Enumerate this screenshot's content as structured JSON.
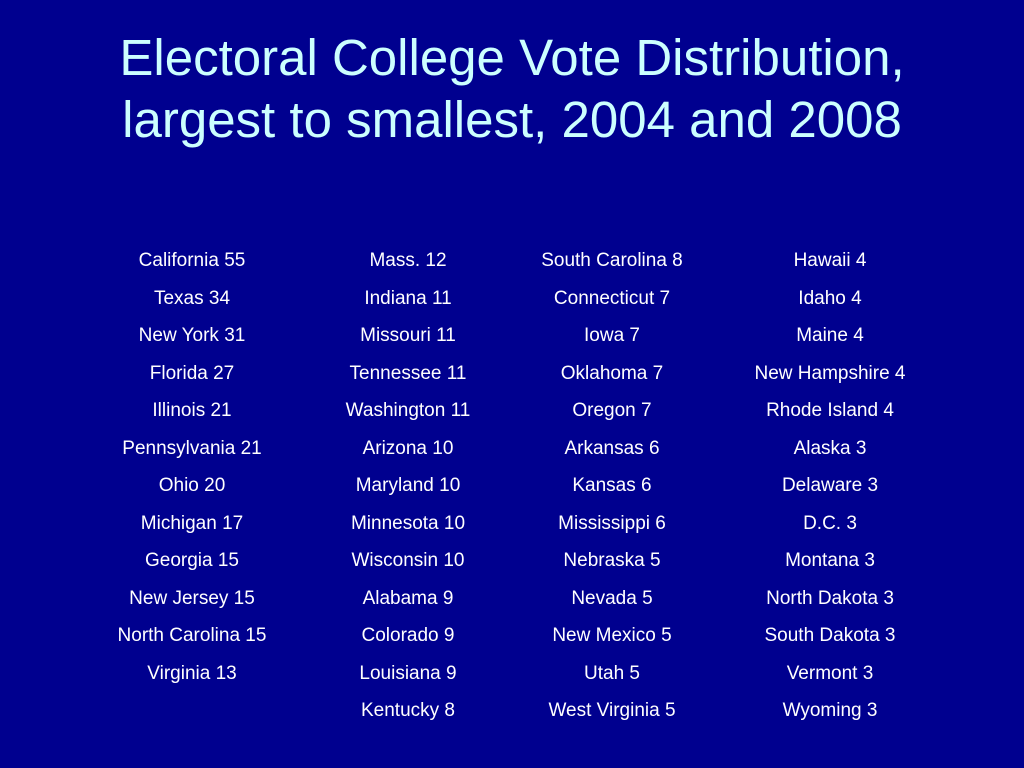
{
  "title": {
    "line1": "Electoral College Vote Distribution,",
    "line2": "largest to smallest, 2004 and 2008"
  },
  "columns": [
    [
      "California 55",
      "Texas 34",
      "New York 31",
      "Florida 27",
      "Illinois 21",
      "Pennsylvania 21",
      "Ohio 20",
      "Michigan 17",
      "Georgia 15",
      "New Jersey 15",
      "North Carolina 15",
      "Virginia 13"
    ],
    [
      "Mass. 12",
      "Indiana 11",
      "Missouri 11",
      "Tennessee 11",
      "Washington 11",
      "Arizona 10",
      "Maryland 10",
      "Minnesota 10",
      "Wisconsin 10",
      "Alabama 9",
      "Colorado 9",
      "Louisiana 9",
      "Kentucky 8"
    ],
    [
      "South Carolina 8",
      "Connecticut 7",
      "Iowa 7",
      "Oklahoma 7",
      "Oregon 7",
      "Arkansas 6",
      "Kansas 6",
      "Mississippi 6",
      "Nebraska 5",
      "Nevada 5",
      "New Mexico 5",
      "Utah 5",
      "West Virginia 5"
    ],
    [
      "Hawaii 4",
      "Idaho 4",
      "Maine 4",
      "New Hampshire 4",
      "Rhode Island 4",
      "Alaska 3",
      "Delaware 3",
      "D.C. 3",
      "Montana 3",
      "North Dakota 3",
      "South Dakota 3",
      "Vermont 3",
      "Wyoming 3"
    ]
  ],
  "colors": {
    "background": "#00008f",
    "title": "#ccffff",
    "text": "#ffffff"
  }
}
